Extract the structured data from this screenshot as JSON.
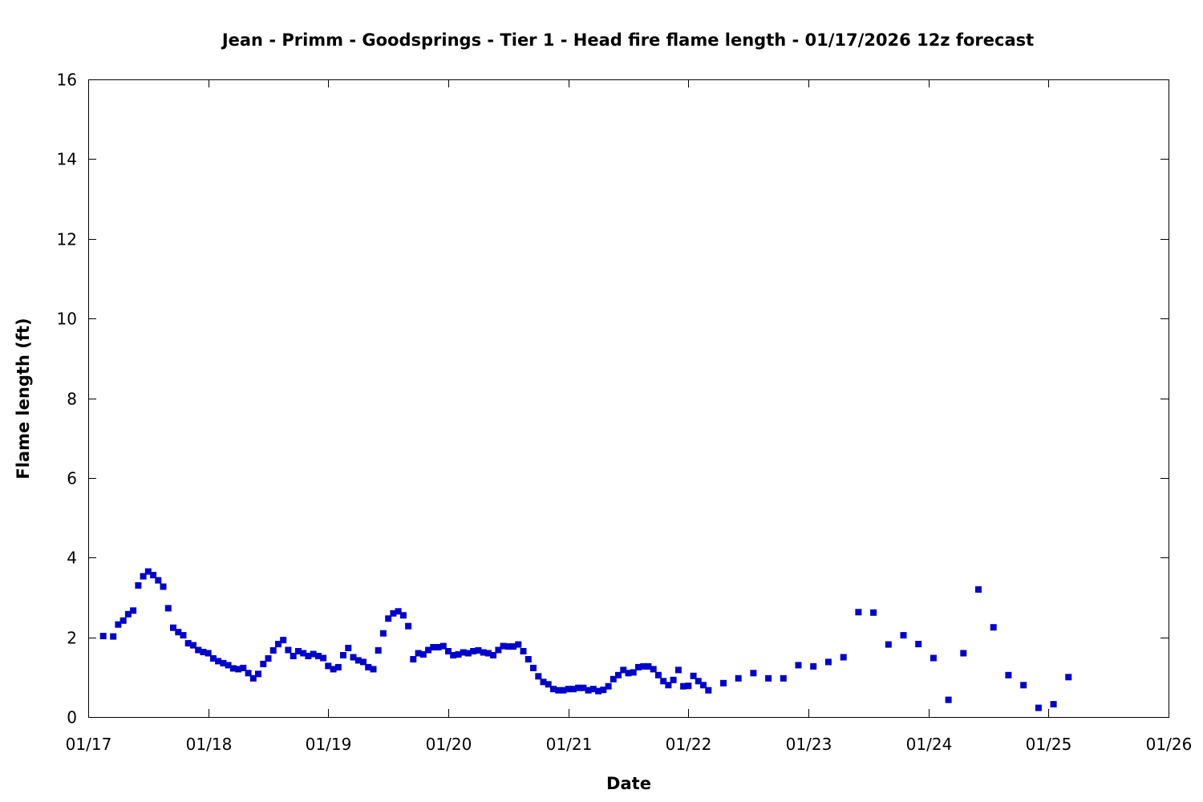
{
  "chart_data": {
    "type": "scatter",
    "title": "Jean - Primm - Goodsprings - Tier 1 - Head fire flame length - 01/17/2026 12z forecast",
    "xlabel": "Date",
    "ylabel": "Flame length (ft)",
    "xlim": [
      "01/17",
      "01/26"
    ],
    "ylim": [
      0,
      16
    ],
    "x_tick_labels": [
      "01/17",
      "01/18",
      "01/19",
      "01/20",
      "01/21",
      "01/22",
      "01/23",
      "01/24",
      "01/25",
      "01/26"
    ],
    "y_tick_labels": [
      "0",
      "2",
      "4",
      "6",
      "8",
      "10",
      "12",
      "14",
      "16"
    ],
    "grid": false,
    "marker_color": "#0000cc",
    "series": [
      {
        "points": [
          [
            "01/17 03:00",
            2.03
          ],
          [
            "01/17 05:00",
            2.02
          ],
          [
            "01/17 06:00",
            2.32
          ],
          [
            "01/17 07:00",
            2.42
          ],
          [
            "01/17 08:00",
            2.58
          ],
          [
            "01/17 09:00",
            2.67
          ],
          [
            "01/17 10:00",
            3.3
          ],
          [
            "01/17 11:00",
            3.53
          ],
          [
            "01/17 12:00",
            3.65
          ],
          [
            "01/17 13:00",
            3.56
          ],
          [
            "01/17 14:00",
            3.43
          ],
          [
            "01/17 15:00",
            3.27
          ],
          [
            "01/17 16:00",
            2.73
          ],
          [
            "01/17 17:00",
            2.24
          ],
          [
            "01/17 18:00",
            2.13
          ],
          [
            "01/17 19:00",
            2.05
          ],
          [
            "01/17 20:00",
            1.85
          ],
          [
            "01/17 21:00",
            1.8
          ],
          [
            "01/17 22:00",
            1.68
          ],
          [
            "01/17 23:00",
            1.63
          ],
          [
            "01/18 00:00",
            1.6
          ],
          [
            "01/18 01:00",
            1.47
          ],
          [
            "01/18 02:00",
            1.4
          ],
          [
            "01/18 03:00",
            1.35
          ],
          [
            "01/18 04:00",
            1.3
          ],
          [
            "01/18 05:00",
            1.22
          ],
          [
            "01/18 06:00",
            1.2
          ],
          [
            "01/18 07:00",
            1.23
          ],
          [
            "01/18 08:00",
            1.1
          ],
          [
            "01/18 09:00",
            0.97
          ],
          [
            "01/18 10:00",
            1.08
          ],
          [
            "01/18 11:00",
            1.33
          ],
          [
            "01/18 12:00",
            1.47
          ],
          [
            "01/18 13:00",
            1.67
          ],
          [
            "01/18 14:00",
            1.83
          ],
          [
            "01/18 15:00",
            1.93
          ],
          [
            "01/18 16:00",
            1.68
          ],
          [
            "01/18 17:00",
            1.53
          ],
          [
            "01/18 18:00",
            1.65
          ],
          [
            "01/18 19:00",
            1.6
          ],
          [
            "01/18 20:00",
            1.53
          ],
          [
            "01/18 21:00",
            1.58
          ],
          [
            "01/18 22:00",
            1.53
          ],
          [
            "01/18 23:00",
            1.48
          ],
          [
            "01/19 00:00",
            1.28
          ],
          [
            "01/19 01:00",
            1.2
          ],
          [
            "01/19 02:00",
            1.25
          ],
          [
            "01/19 03:00",
            1.55
          ],
          [
            "01/19 04:00",
            1.73
          ],
          [
            "01/19 05:00",
            1.5
          ],
          [
            "01/19 06:00",
            1.42
          ],
          [
            "01/19 07:00",
            1.38
          ],
          [
            "01/19 08:00",
            1.25
          ],
          [
            "01/19 09:00",
            1.2
          ],
          [
            "01/19 10:00",
            1.67
          ],
          [
            "01/19 11:00",
            2.1
          ],
          [
            "01/19 12:00",
            2.47
          ],
          [
            "01/19 13:00",
            2.6
          ],
          [
            "01/19 14:00",
            2.65
          ],
          [
            "01/19 15:00",
            2.55
          ],
          [
            "01/19 16:00",
            2.28
          ],
          [
            "01/19 17:00",
            1.45
          ],
          [
            "01/19 18:00",
            1.6
          ],
          [
            "01/19 19:00",
            1.57
          ],
          [
            "01/19 20:00",
            1.68
          ],
          [
            "01/19 21:00",
            1.75
          ],
          [
            "01/19 22:00",
            1.75
          ],
          [
            "01/19 23:00",
            1.78
          ],
          [
            "01/20 00:00",
            1.65
          ],
          [
            "01/20 01:00",
            1.55
          ],
          [
            "01/20 02:00",
            1.57
          ],
          [
            "01/20 03:00",
            1.62
          ],
          [
            "01/20 04:00",
            1.6
          ],
          [
            "01/20 05:00",
            1.65
          ],
          [
            "01/20 06:00",
            1.67
          ],
          [
            "01/20 07:00",
            1.62
          ],
          [
            "01/20 08:00",
            1.6
          ],
          [
            "01/20 09:00",
            1.55
          ],
          [
            "01/20 10:00",
            1.68
          ],
          [
            "01/20 11:00",
            1.78
          ],
          [
            "01/20 12:00",
            1.77
          ],
          [
            "01/20 13:00",
            1.77
          ],
          [
            "01/20 14:00",
            1.82
          ],
          [
            "01/20 15:00",
            1.65
          ],
          [
            "01/20 16:00",
            1.45
          ],
          [
            "01/20 17:00",
            1.23
          ],
          [
            "01/20 18:00",
            1.02
          ],
          [
            "01/20 19:00",
            0.88
          ],
          [
            "01/20 20:00",
            0.82
          ],
          [
            "01/20 21:00",
            0.7
          ],
          [
            "01/20 22:00",
            0.67
          ],
          [
            "01/20 23:00",
            0.67
          ],
          [
            "01/21 00:00",
            0.7
          ],
          [
            "01/21 01:00",
            0.7
          ],
          [
            "01/21 02:00",
            0.73
          ],
          [
            "01/21 03:00",
            0.73
          ],
          [
            "01/21 04:00",
            0.67
          ],
          [
            "01/21 05:00",
            0.7
          ],
          [
            "01/21 06:00",
            0.65
          ],
          [
            "01/21 07:00",
            0.68
          ],
          [
            "01/21 08:00",
            0.77
          ],
          [
            "01/21 09:00",
            0.95
          ],
          [
            "01/21 10:00",
            1.05
          ],
          [
            "01/21 11:00",
            1.18
          ],
          [
            "01/21 12:00",
            1.1
          ],
          [
            "01/21 13:00",
            1.12
          ],
          [
            "01/21 14:00",
            1.25
          ],
          [
            "01/21 15:00",
            1.27
          ],
          [
            "01/21 16:00",
            1.27
          ],
          [
            "01/21 17:00",
            1.2
          ],
          [
            "01/21 18:00",
            1.05
          ],
          [
            "01/21 19:00",
            0.9
          ],
          [
            "01/21 20:00",
            0.8
          ],
          [
            "01/21 21:00",
            0.93
          ],
          [
            "01/21 22:00",
            1.18
          ],
          [
            "01/21 23:00",
            0.77
          ],
          [
            "01/22 00:00",
            0.78
          ],
          [
            "01/22 01:00",
            1.03
          ],
          [
            "01/22 02:00",
            0.9
          ],
          [
            "01/22 03:00",
            0.8
          ],
          [
            "01/22 04:00",
            0.67
          ],
          [
            "01/22 07:00",
            0.85
          ],
          [
            "01/22 10:00",
            0.97
          ],
          [
            "01/22 13:00",
            1.1
          ],
          [
            "01/22 16:00",
            0.97
          ],
          [
            "01/22 19:00",
            0.97
          ],
          [
            "01/22 22:00",
            1.3
          ],
          [
            "01/23 01:00",
            1.27
          ],
          [
            "01/23 04:00",
            1.38
          ],
          [
            "01/23 07:00",
            1.5
          ],
          [
            "01/23 10:00",
            2.63
          ],
          [
            "01/23 13:00",
            2.62
          ],
          [
            "01/23 16:00",
            1.82
          ],
          [
            "01/23 19:00",
            2.05
          ],
          [
            "01/23 22:00",
            1.83
          ],
          [
            "01/24 01:00",
            1.48
          ],
          [
            "01/24 04:00",
            0.43
          ],
          [
            "01/24 07:00",
            1.6
          ],
          [
            "01/24 10:00",
            3.2
          ],
          [
            "01/24 13:00",
            2.25
          ],
          [
            "01/24 16:00",
            1.05
          ],
          [
            "01/24 19:00",
            0.8
          ],
          [
            "01/24 22:00",
            0.23
          ],
          [
            "01/25 01:00",
            0.32
          ],
          [
            "01/25 04:00",
            1.0
          ]
        ]
      }
    ]
  }
}
